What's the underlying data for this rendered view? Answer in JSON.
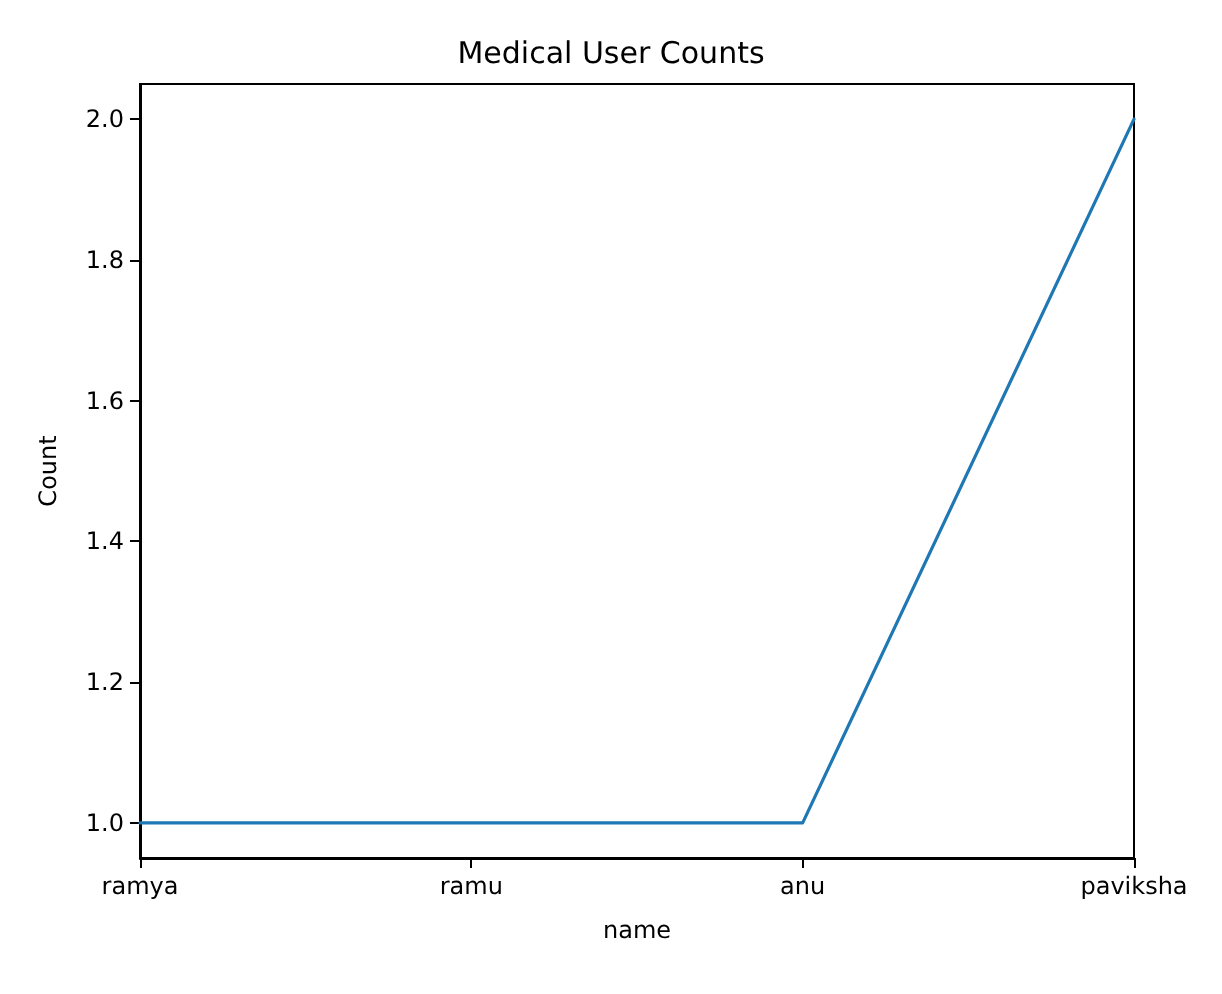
{
  "chart_data": {
    "type": "line",
    "title": "Medical User Counts",
    "xlabel": "name",
    "ylabel": "Count",
    "categories": [
      "ramya",
      "ramu",
      "anu",
      "paviksha"
    ],
    "series": [
      {
        "color": "#1f77b4",
        "values": [
          1,
          1,
          1,
          2
        ]
      }
    ],
    "ylim": [
      0.95,
      2.05
    ],
    "yticks": [
      {
        "value": 1,
        "label": "1.0"
      },
      {
        "value": 1.2,
        "label": "1.2"
      },
      {
        "value": 1.4,
        "label": "1.4"
      },
      {
        "value": 1.6,
        "label": "1.6"
      },
      {
        "value": 1.8,
        "label": "1.8"
      },
      {
        "value": 2,
        "label": "2.0"
      }
    ],
    "grid": false,
    "marker": "none",
    "line_style": "solid"
  }
}
